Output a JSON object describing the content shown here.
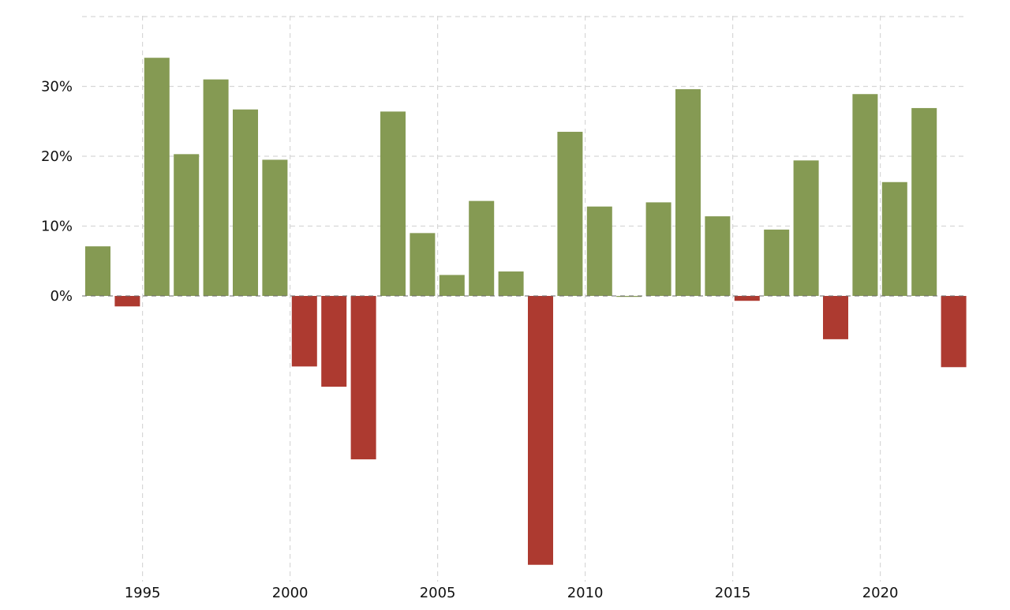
{
  "chart_data": {
    "type": "bar",
    "title": "",
    "xlabel": "",
    "ylabel": "",
    "categories": [
      1993,
      1994,
      1995,
      1996,
      1997,
      1998,
      1999,
      2000,
      2001,
      2002,
      2003,
      2004,
      2005,
      2006,
      2007,
      2008,
      2009,
      2010,
      2011,
      2012,
      2013,
      2014,
      2015,
      2016,
      2017,
      2018,
      2019,
      2020,
      2021,
      2022
    ],
    "values": [
      7.1,
      -1.5,
      34.1,
      20.3,
      31.0,
      26.7,
      19.5,
      -10.1,
      -13.0,
      -23.4,
      26.4,
      9.0,
      3.0,
      13.6,
      3.5,
      -38.5,
      23.5,
      12.8,
      0.0,
      13.4,
      29.6,
      11.4,
      -0.7,
      9.5,
      19.4,
      -6.2,
      28.9,
      16.3,
      26.9,
      -10.2
    ],
    "ylim": [
      -40,
      40
    ],
    "y_ticks": [
      0,
      10,
      20,
      30
    ],
    "y_tick_labels": [
      "0%",
      "10%",
      "20%",
      "30%"
    ],
    "x_ticks": [
      1995,
      2000,
      2005,
      2010,
      2015,
      2020
    ],
    "x_tick_labels": [
      "1995",
      "2000",
      "2005",
      "2010",
      "2015",
      "2020"
    ],
    "grid": true,
    "legend": "none",
    "colors": {
      "positive": "#859a53",
      "negative": "#ad3a30",
      "grid": "#d7d7d7",
      "axis_text": "#111111"
    }
  }
}
